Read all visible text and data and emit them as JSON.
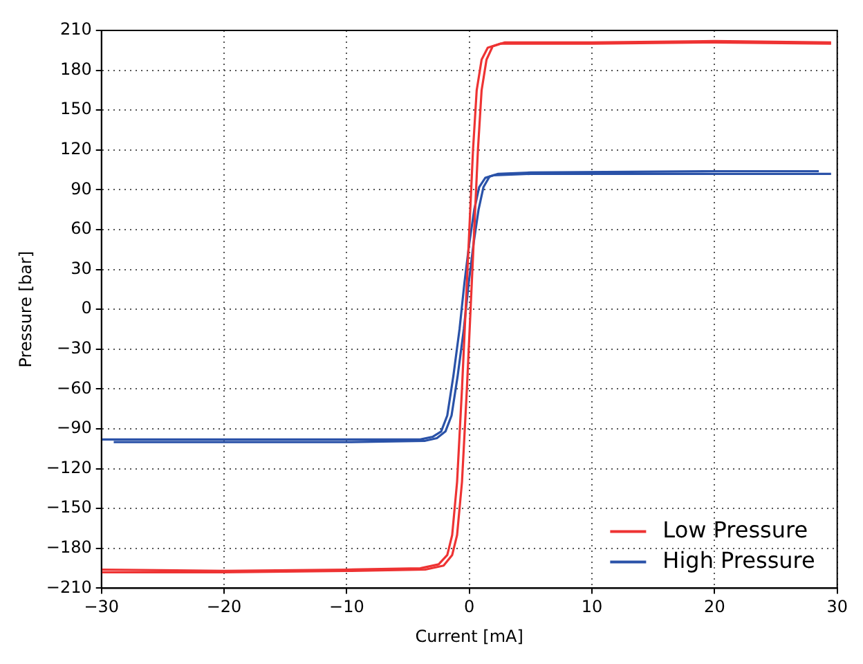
{
  "chart_data": {
    "type": "line",
    "xlabel": "Current [mA]",
    "ylabel": "Pressure [bar]",
    "xlim": [
      -30,
      30
    ],
    "ylim": [
      -210,
      210
    ],
    "xticks": [
      -30,
      -20,
      -10,
      0,
      10,
      20,
      30
    ],
    "yticks": [
      -210,
      -180,
      -150,
      -120,
      -90,
      -60,
      -30,
      0,
      30,
      60,
      90,
      120,
      150,
      180,
      210
    ],
    "grid": true,
    "legend": "bottom right",
    "line_style": "solid",
    "marker": "none",
    "series": [
      {
        "name": "Low Pressure",
        "color": "#ee3333",
        "x": [
          -30,
          -20,
          -10,
          -4,
          -2.5,
          -1.8,
          -1.4,
          -1,
          -0.6,
          -0.3,
          0,
          0.3,
          0.6,
          1,
          1.5,
          2.5,
          10,
          20,
          29.5
        ],
        "values": [
          -196,
          -197,
          -196,
          -195,
          -192,
          -185,
          -170,
          -130,
          -60,
          0,
          60,
          120,
          165,
          188,
          197,
          200,
          200,
          201,
          200
        ]
      },
      {
        "color": "#ee3333",
        "x": [
          -30,
          -20,
          -10,
          -3.6,
          -2.1,
          -1.4,
          -1,
          -0.6,
          -0.2,
          0.1,
          0.4,
          0.7,
          1,
          1.4,
          1.9,
          2.9,
          10,
          20,
          29.5
        ],
        "values": [
          -198,
          -198,
          -197,
          -196,
          -193,
          -185,
          -170,
          -130,
          -60,
          0,
          60,
          120,
          165,
          188,
          198,
          201,
          201,
          202,
          201
        ]
      },
      {
        "name": "High Pressure",
        "color": "#2a52a8",
        "x": [
          -30,
          -10,
          -4,
          -3,
          -2.3,
          -1.8,
          -1.3,
          -0.8,
          -0.4,
          0,
          0.4,
          0.8,
          1.3,
          2,
          5,
          20,
          29.5
        ],
        "values": [
          -98,
          -98,
          -98,
          -96,
          -92,
          -80,
          -50,
          -15,
          20,
          50,
          75,
          92,
          99,
          101,
          102,
          102,
          102
        ]
      },
      {
        "color": "#2a52a8",
        "x": [
          -29,
          -10,
          -3.6,
          -2.65,
          -1.95,
          -1.45,
          -0.95,
          -0.45,
          -0.05,
          0.35,
          0.75,
          1.15,
          1.65,
          2.35,
          5,
          20,
          28.5
        ],
        "values": [
          -100,
          -100,
          -99,
          -97,
          -92,
          -80,
          -50,
          -15,
          20,
          50,
          75,
          92,
          100,
          102,
          103,
          104,
          104
        ]
      }
    ]
  }
}
